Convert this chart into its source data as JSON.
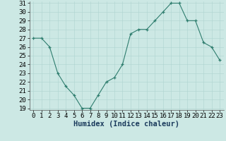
{
  "x": [
    0,
    1,
    2,
    3,
    4,
    5,
    6,
    7,
    8,
    9,
    10,
    11,
    12,
    13,
    14,
    15,
    16,
    17,
    18,
    19,
    20,
    21,
    22,
    23
  ],
  "y": [
    27,
    27,
    26,
    23,
    21.5,
    20.5,
    19,
    19,
    20.5,
    22,
    22.5,
    24,
    27.5,
    28,
    28,
    29,
    30,
    31,
    31,
    29,
    29,
    26.5,
    26,
    24.5
  ],
  "xlabel": "Humidex (Indice chaleur)",
  "line_color": "#2e7d6e",
  "marker": "+",
  "bg_color": "#cce8e4",
  "grid_color": "#aed4d0",
  "ylim": [
    19,
    31
  ],
  "xlim": [
    -0.5,
    23.5
  ],
  "yticks": [
    19,
    20,
    21,
    22,
    23,
    24,
    25,
    26,
    27,
    28,
    29,
    30,
    31
  ],
  "xticks": [
    0,
    1,
    2,
    3,
    4,
    5,
    6,
    7,
    8,
    9,
    10,
    11,
    12,
    13,
    14,
    15,
    16,
    17,
    18,
    19,
    20,
    21,
    22,
    23
  ],
  "xlabel_color": "#1a3a5c",
  "xlabel_fontsize": 7.5,
  "tick_fontsize": 6.5
}
